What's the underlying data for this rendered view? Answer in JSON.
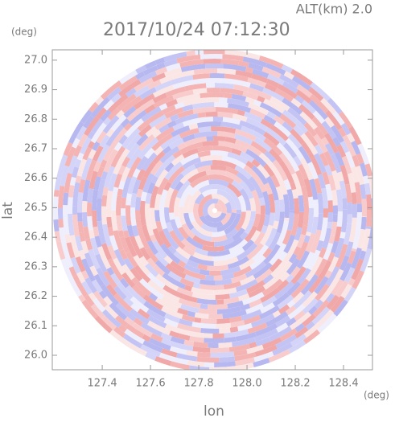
{
  "chart_data": {
    "type": "radar-ppi",
    "title": "2017/10/24 07:12:30",
    "subtitle": "ALT(km) 2.0",
    "x_label": "lon",
    "y_label": "lat",
    "x_unit": "(deg)",
    "y_unit": "(deg)",
    "xlim": [
      127.193,
      128.52
    ],
    "ylim": [
      25.951,
      27.035
    ],
    "xticks": [
      127.4,
      127.6,
      127.8,
      {
        "value": 128.0,
        "label": "128.0"
      },
      128.2,
      128.4
    ],
    "yticks": [
      {
        "value": 26.0,
        "label": "26.0"
      },
      26.1,
      26.2,
      26.3,
      26.4,
      26.5,
      26.6,
      26.7,
      26.8,
      26.9,
      {
        "value": 27.0,
        "label": "27.0"
      }
    ]
  }
}
